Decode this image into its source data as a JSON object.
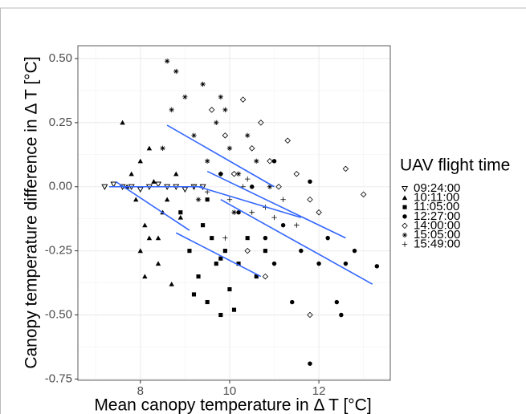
{
  "chart_data": {
    "type": "scatter",
    "x_label": "Mean canopy temperature in Δ T [°C]",
    "y_label": "Canopy temperature difference in Δ T [°C]",
    "legend_title": "UAV flight time",
    "xlim": [
      6.6,
      13.6
    ],
    "ylim": [
      -0.755,
      0.55
    ],
    "xticks": [
      8,
      10,
      12
    ],
    "yticks": [
      {
        "value": 0.5,
        "label": "0.50"
      },
      0.25,
      {
        "value": 0,
        "label": "0.00"
      },
      -0.25,
      {
        "value": -0.5,
        "label": "-0.50"
      },
      -0.75
    ],
    "grid": true,
    "legend": "right",
    "fit_color": "#3366ff",
    "series": [
      {
        "name": "09:24:00",
        "color": "#000000",
        "marker": "triangle-down-open",
        "x": [
          7.2,
          7.4,
          7.6,
          7.8,
          8.0,
          8.2,
          8.4,
          8.6,
          8.8,
          9.0,
          9.2,
          9.4
        ],
        "values": [
          0,
          0.01,
          0,
          0,
          -0.01,
          0,
          0.01,
          0,
          0,
          -0.01,
          0,
          0
        ],
        "fit": {
          "x": [
            7.3,
            9.4
          ],
          "values": [
            0,
            0
          ]
        }
      },
      {
        "name": "10:11:00",
        "color": "#000000",
        "marker": "triangle",
        "x": [
          7.6,
          7.8,
          7.9,
          8.0,
          8.1,
          8.2,
          8.3,
          8.4,
          8.5,
          8.6,
          8.7,
          8.8,
          8.0,
          8.2,
          7.7,
          8.4,
          8.9,
          8.1
        ],
        "values": [
          0.25,
          0.05,
          -0.05,
          0.1,
          -0.15,
          -0.2,
          0.02,
          -0.3,
          -0.1,
          -0.05,
          -0.38,
          0.05,
          -0.25,
          0.15,
          0.0,
          -0.2,
          -0.12,
          -0.35
        ],
        "fit": {
          "x": [
            7.45,
            9.1
          ],
          "values": [
            0.02,
            -0.17
          ]
        }
      },
      {
        "name": "11:05:00",
        "color": "#000000",
        "marker": "square",
        "x": [
          8.9,
          9.1,
          9.3,
          9.4,
          9.5,
          9.6,
          9.7,
          9.8,
          9.9,
          10.0,
          10.2,
          10.4,
          10.6,
          9.5,
          9.8,
          9.2,
          10.1,
          10.8
        ],
        "values": [
          -0.1,
          -0.25,
          -0.35,
          -0.15,
          -0.45,
          -0.2,
          -0.3,
          -0.5,
          -0.25,
          -0.4,
          -0.3,
          -0.2,
          -0.35,
          -0.05,
          -0.28,
          -0.42,
          -0.48,
          -0.25
        ],
        "fit": {
          "x": [
            8.8,
            10.7
          ],
          "values": [
            -0.18,
            -0.35
          ]
        }
      },
      {
        "name": "12:27:00",
        "color": "#000000",
        "marker": "circle",
        "x": [
          9.8,
          10.2,
          10.5,
          10.8,
          11.0,
          11.2,
          11.4,
          11.6,
          11.8,
          12.0,
          12.2,
          12.4,
          12.6,
          12.8,
          13.3,
          11.8,
          11.0,
          12.5
        ],
        "values": [
          0.05,
          -0.1,
          0.0,
          -0.2,
          -0.3,
          -0.15,
          -0.45,
          -0.25,
          -0.69,
          -0.3,
          -0.2,
          -0.45,
          -0.3,
          -0.25,
          -0.31,
          0.02,
          0.1,
          -0.5
        ],
        "fit": {
          "x": [
            9.8,
            13.2
          ],
          "values": [
            -0.05,
            -0.38
          ]
        }
      },
      {
        "name": "14:00:00",
        "color": "#000000",
        "marker": "diamond-open",
        "x": [
          9.6,
          9.9,
          10.1,
          10.3,
          10.5,
          10.7,
          10.9,
          11.1,
          11.3,
          11.5,
          11.8,
          12.0,
          12.6,
          13.0,
          10.4,
          10.8,
          11.8
        ],
        "values": [
          0.3,
          0.2,
          0.05,
          0.34,
          0.15,
          0.25,
          0.1,
          0.0,
          0.18,
          0.05,
          -0.05,
          -0.1,
          0.07,
          -0.03,
          -0.25,
          -0.35,
          -0.5
        ],
        "fit": {
          "x": [
            9.5,
            12.6
          ],
          "values": [
            0.06,
            -0.2
          ]
        }
      },
      {
        "name": "15:05:00",
        "color": "#000000",
        "marker": "asterisk",
        "x": [
          8.6,
          8.8,
          8.7,
          9.0,
          9.2,
          9.4,
          9.5,
          9.7,
          9.9,
          10.0,
          10.2,
          10.4,
          10.6,
          8.5,
          9.3,
          9.8,
          10.1,
          10.9
        ],
        "values": [
          0.49,
          0.45,
          0.3,
          0.35,
          0.2,
          0.4,
          0.1,
          0.25,
          0.3,
          0.15,
          0.05,
          0.2,
          0.1,
          0.15,
          -0.05,
          0.35,
          -0.1,
          0.0
        ],
        "fit": {
          "x": [
            8.6,
            11.0
          ],
          "values": [
            0.24,
            0.0
          ]
        }
      },
      {
        "name": "15:49:00",
        "color": "#000000",
        "marker": "plus",
        "x": [
          9.2,
          9.5,
          9.8,
          10.0,
          10.3,
          10.5,
          10.8,
          11.0,
          11.2,
          11.5,
          9.9,
          10.4
        ],
        "values": [
          0.0,
          -0.02,
          0.05,
          -0.05,
          0.0,
          -0.1,
          -0.08,
          -0.12,
          -0.05,
          -0.15,
          -0.2,
          0.03
        ],
        "fit": {
          "x": [
            9.3,
            11.6
          ],
          "values": [
            0.0,
            -0.12
          ]
        }
      }
    ]
  }
}
